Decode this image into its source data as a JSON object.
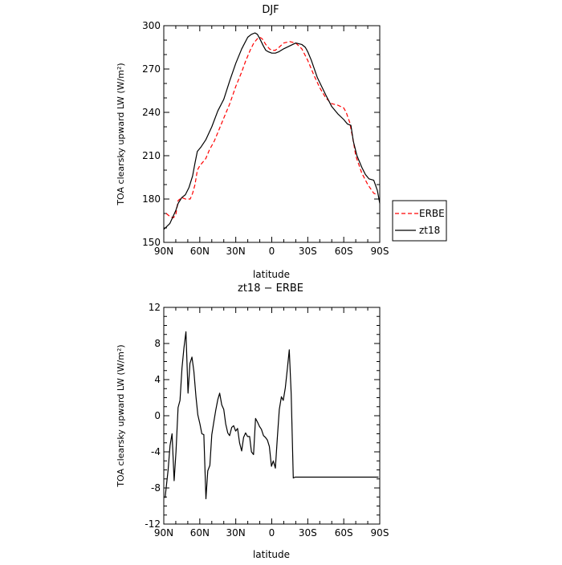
{
  "chart_data": [
    {
      "type": "line",
      "title": "DJF",
      "xlabel": "latitude",
      "ylabel": "TOA clearsky upward LW (W/m²)",
      "xlim": [
        -90,
        90
      ],
      "ylim": [
        150,
        300
      ],
      "xticks": [
        -90,
        -60,
        -30,
        0,
        30,
        60,
        90
      ],
      "xtick_labels": [
        "90N",
        "60N",
        "30N",
        "0",
        "30S",
        "60S",
        "90S"
      ],
      "yticks": [
        150,
        180,
        210,
        240,
        270,
        300
      ],
      "legend": {
        "placement": "right",
        "entries": [
          "ERBE",
          "zt18"
        ]
      },
      "series": [
        {
          "name": "ERBE",
          "color": "#ff0000",
          "style": "dashed",
          "x": [
            -88,
            -85,
            -82,
            -80,
            -78,
            -75,
            -72,
            -68,
            -66,
            -64,
            -62,
            -60,
            -57,
            -55,
            -52,
            -48,
            -45,
            -40,
            -35,
            -30,
            -25,
            -22,
            -18,
            -15,
            -12,
            -10,
            -8,
            -5,
            -2,
            0,
            3,
            6,
            10,
            15,
            20,
            25,
            30,
            35,
            40,
            45,
            50,
            55,
            60,
            62,
            65,
            68,
            70,
            75,
            80,
            85,
            88
          ],
          "y": [
            170,
            168,
            167,
            169,
            179,
            181,
            180,
            180,
            184,
            190,
            200,
            203,
            206,
            208,
            214,
            220,
            226,
            236,
            246,
            258,
            268,
            275,
            283,
            288,
            291,
            292,
            291,
            287,
            284,
            283,
            283,
            285,
            288,
            289,
            288,
            284,
            276,
            266,
            257,
            250,
            246,
            245,
            243,
            240,
            233,
            220,
            210,
            198,
            190,
            184,
            183
          ]
        },
        {
          "name": "zt18",
          "color": "#000000",
          "style": "solid",
          "x": [
            -90,
            -85,
            -80,
            -78,
            -75,
            -72,
            -69,
            -66,
            -64,
            -62,
            -59,
            -55,
            -50,
            -45,
            -40,
            -35,
            -30,
            -25,
            -20,
            -17,
            -14,
            -12,
            -10,
            -7,
            -5,
            -3,
            0,
            3,
            6,
            10,
            15,
            20,
            25,
            28,
            30,
            33,
            38,
            45,
            50,
            55,
            60,
            63,
            66,
            68,
            71,
            75,
            78,
            81,
            85,
            88,
            90
          ],
          "y": [
            159,
            163,
            172,
            177,
            181,
            183,
            188,
            196,
            205,
            213,
            216,
            221,
            230,
            241,
            249,
            262,
            274,
            284,
            292,
            294,
            295,
            294,
            291,
            286,
            283,
            282,
            281,
            281,
            282,
            284,
            286,
            288,
            287,
            285,
            282,
            276,
            264,
            252,
            244,
            239,
            235,
            232,
            231,
            220,
            210,
            202,
            197,
            194,
            193,
            186,
            177
          ]
        }
      ]
    },
    {
      "type": "line",
      "title": "zt18 − ERBE",
      "xlabel": "latitude",
      "ylabel": "TOA clearsky upward LW (W/m²)",
      "xlim": [
        -90,
        90
      ],
      "ylim": [
        -12,
        12
      ],
      "xticks": [
        -90,
        -60,
        -30,
        0,
        30,
        60,
        90
      ],
      "xtick_labels": [
        "90N",
        "60N",
        "30N",
        "0",
        "30S",
        "60S",
        "90S"
      ],
      "yticks": [
        -12,
        -8,
        -4,
        0,
        4,
        8,
        12
      ],
      "series": [
        {
          "color": "#000000",
          "x": [
            -88.9,
            -86.4,
            -84.8,
            -83.1,
            -81.4,
            -79.8,
            -78.1,
            -76.5,
            -74.8,
            -73.2,
            -71.5,
            -69.8,
            -68.2,
            -66.5,
            -64.9,
            -63.2,
            -61.6,
            -59.9,
            -58.3,
            -56.6,
            -54.9,
            -53.3,
            -51.6,
            -50.0,
            -48.3,
            -46.7,
            -45.0,
            -43.4,
            -41.7,
            -40.0,
            -38.4,
            -36.7,
            -35.1,
            -33.4,
            -31.8,
            -30.1,
            -28.5,
            -26.8,
            -25.1,
            -23.5,
            -21.8,
            -20.2,
            -18.5,
            -16.9,
            -15.2,
            -13.5,
            -11.9,
            -10.2,
            -8.6,
            -6.9,
            -5.3,
            -3.6,
            -2.0,
            -0.3,
            1.3,
            3.0,
            4.6,
            6.3,
            8.0,
            9.6,
            11.3,
            12.9,
            14.6,
            16.2,
            17.9,
            19.5,
            21.2,
            22.9,
            24.5,
            26.2,
            27.8,
            29.5,
            31.1,
            32.8,
            34.4,
            36.1,
            37.7,
            39.4,
            41.1,
            42.7,
            44.4,
            46.0,
            47.7,
            49.3,
            51.0,
            52.6,
            54.3,
            56.0,
            57.6,
            59.3,
            60.9,
            62.6,
            64.2,
            65.9,
            67.5,
            69.2,
            70.9,
            72.5,
            74.2,
            75.8,
            77.5,
            79.1,
            80.8,
            82.4,
            84.1,
            85.8,
            87.4,
            88.9
          ],
          "y": [
            -9.1,
            -6.0,
            -3.3,
            -2.0,
            -7.2,
            -4.0,
            0.9,
            1.7,
            5.3,
            7.5,
            9.3,
            2.5,
            5.8,
            6.5,
            4.9,
            2.1,
            0.1,
            -0.9,
            -2.0,
            -2.1,
            -9.2,
            -6.1,
            -5.5,
            -2.1,
            -0.7,
            0.6,
            1.8,
            2.5,
            1.2,
            0.7,
            -0.9,
            -1.9,
            -2.2,
            -1.3,
            -1.1,
            -1.7,
            -1.4,
            -3.0,
            -3.9,
            -2.4,
            -1.9,
            -2.3,
            -2.3,
            -4.0,
            -4.3,
            -0.3,
            -0.7,
            -1.2,
            -1.5,
            -2.2,
            -2.4,
            -2.7,
            -3.4,
            -5.6,
            -5.0,
            -5.8,
            -2.5,
            0.7,
            2.1,
            1.7,
            3.1,
            5.1,
            7.3,
            2.4,
            -6.9,
            -6.8,
            -6.8,
            -6.8,
            -6.8,
            -6.8,
            -6.8,
            -6.8,
            -6.8,
            -6.8,
            -6.8,
            -6.8,
            -6.8,
            -6.8,
            -6.8,
            -6.8,
            -6.8,
            -6.8,
            -6.8,
            -6.8,
            -6.8,
            -6.8,
            -6.8,
            -6.8,
            -6.8,
            -6.8,
            -6.8,
            -6.8,
            -6.8,
            -6.8,
            -6.8,
            -6.8,
            -6.8,
            -6.8,
            -6.8,
            -6.8,
            -6.8,
            -6.8,
            -6.8,
            -6.8,
            -6.8,
            -6.8,
            -6.8,
            -6.8
          ]
        }
      ]
    }
  ]
}
